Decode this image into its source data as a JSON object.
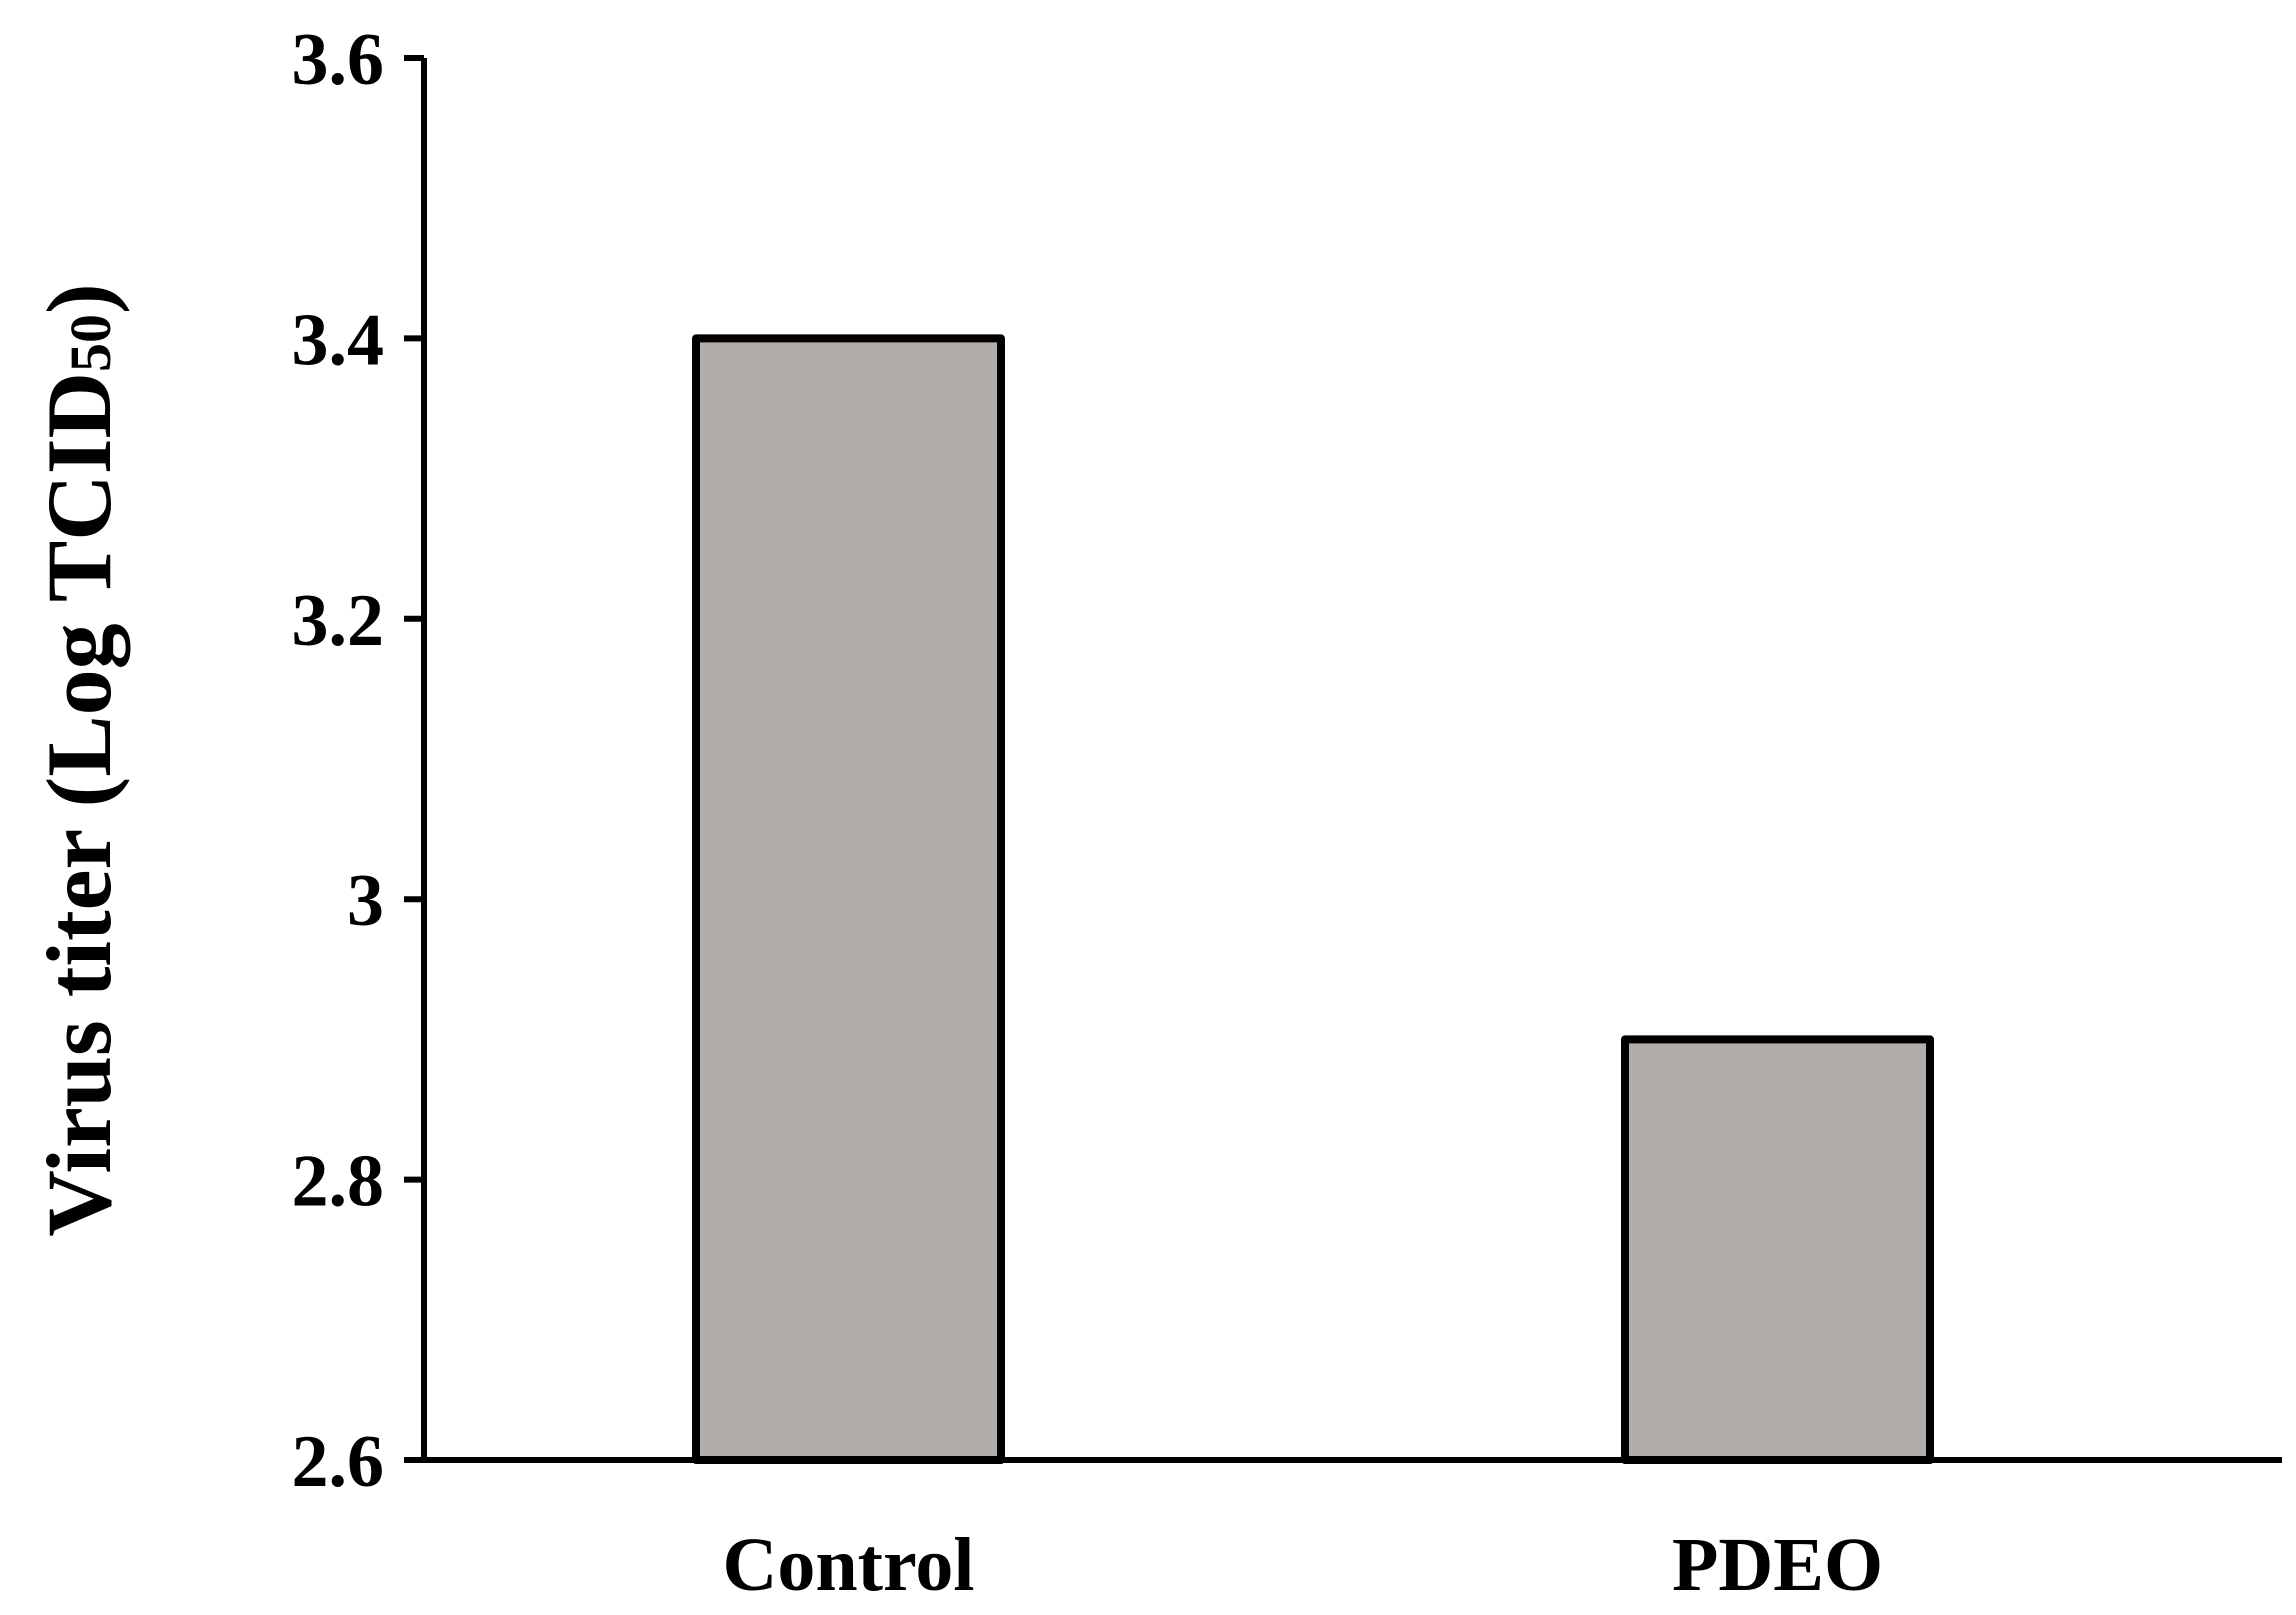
{
  "chart_data": {
    "type": "bar",
    "title": "",
    "xlabel": "",
    "ylabel": "Virus titer (Log TCID",
    "ylabel_subscript": "50",
    "ylabel_close": ")",
    "categories": [
      "Control",
      "PDEO"
    ],
    "values": [
      3.4,
      2.9
    ],
    "ylim": [
      2.6,
      3.6
    ],
    "yticks": [
      2.6,
      2.8,
      3,
      3.2,
      3.4,
      3.6
    ],
    "ytick_labels": [
      "2.6",
      "2.8",
      "3",
      "3.2",
      "3.4",
      "3.6"
    ],
    "grid": false,
    "legend": "none",
    "bar_color": "#b2adaa",
    "bar_edge_color": "#000000"
  }
}
